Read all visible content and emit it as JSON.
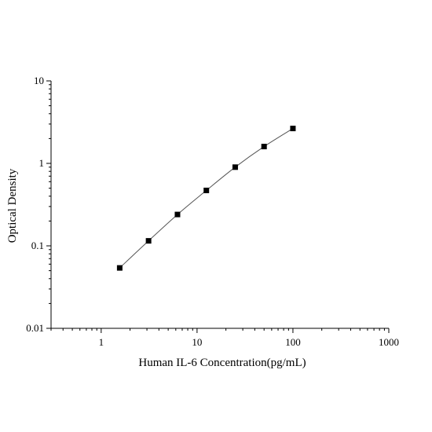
{
  "chart_data": {
    "type": "scatter",
    "xlabel": "Human IL-6 Concentration(pg/mL)",
    "ylabel": "Optical Density",
    "x_scale": "log",
    "y_scale": "log",
    "xlim": [
      0.3,
      1000
    ],
    "ylim": [
      0.01,
      10
    ],
    "x_ticks": [
      "1",
      "10",
      "100",
      "1000"
    ],
    "y_ticks": [
      "0.01",
      "0.1",
      "1",
      "10"
    ],
    "grid": false,
    "legend": "none",
    "series": [
      {
        "x": [
          1.56,
          3.12,
          6.25,
          12.5,
          25,
          50,
          100
        ],
        "y": [
          0.054,
          0.115,
          0.24,
          0.47,
          0.9,
          1.6,
          2.65
        ],
        "marker": "square",
        "fit_line": true
      }
    ],
    "colors": {
      "line": "#555555",
      "marker": "#000000",
      "axis": "#000000"
    }
  }
}
